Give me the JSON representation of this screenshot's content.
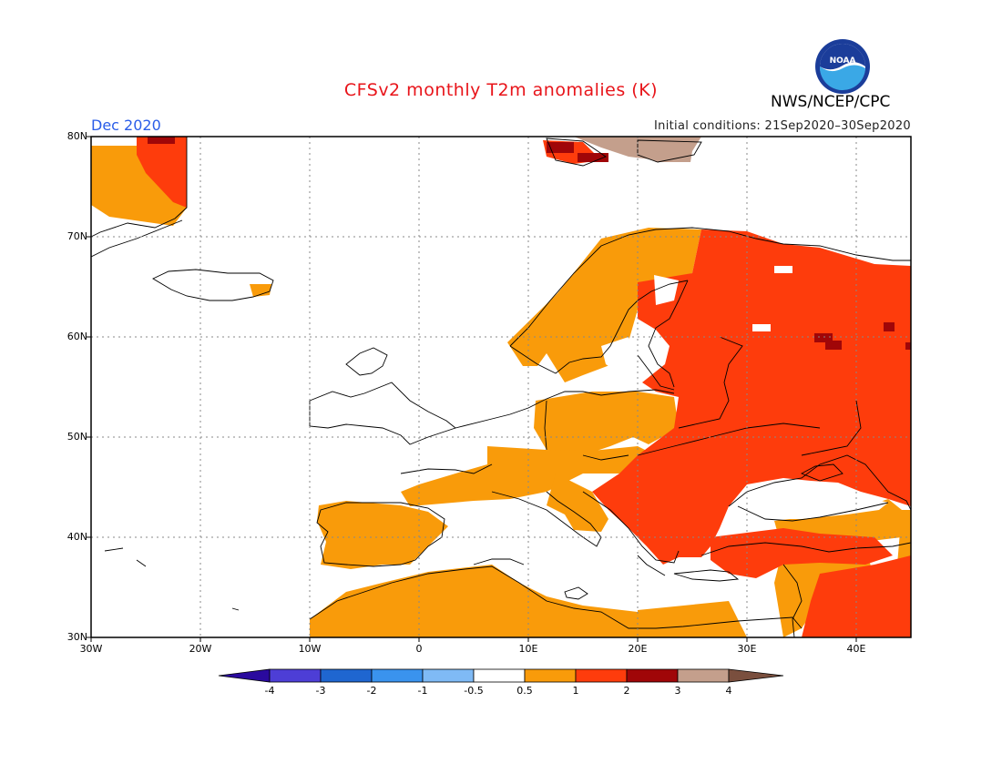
{
  "header": {
    "title": "CFSv2 monthly T2m anomalies (K)",
    "agency": "NWS/NCEP/CPC",
    "logo_text": "NOAA",
    "valid_month": "Dec 2020",
    "initial_conditions": "Initial conditions: 21Sep2020–30Sep2020"
  },
  "axes": {
    "lat_labels": [
      "80N",
      "70N",
      "60N",
      "50N",
      "40N",
      "30N"
    ],
    "lon_labels": [
      "30W",
      "20W",
      "10W",
      "0",
      "10E",
      "20E",
      "30E",
      "40E"
    ],
    "lat_range": [
      30,
      80
    ],
    "lon_range": [
      -30,
      45
    ]
  },
  "colorbar": {
    "labels": [
      "-4",
      "-3",
      "-2",
      "-1",
      "-0.5",
      "0.5",
      "1",
      "2",
      "3",
      "4"
    ],
    "colors": [
      "#2a0a9e",
      "#4d3ed6",
      "#1f66d0",
      "#3a93ee",
      "#7fbaf5",
      "#ffffff",
      "#f99b0a",
      "#fe3c0c",
      "#a00608",
      "#c49f8c",
      "#7a4f3e"
    ]
  },
  "palette": {
    "land_outline": "#000000",
    "grid": "#888888",
    "anomaly_0_5_1": "#f99b0a",
    "anomaly_1_2": "#fe3c0c",
    "anomaly_2_3": "#a00608",
    "anomaly_3_4": "#c49f8c"
  }
}
